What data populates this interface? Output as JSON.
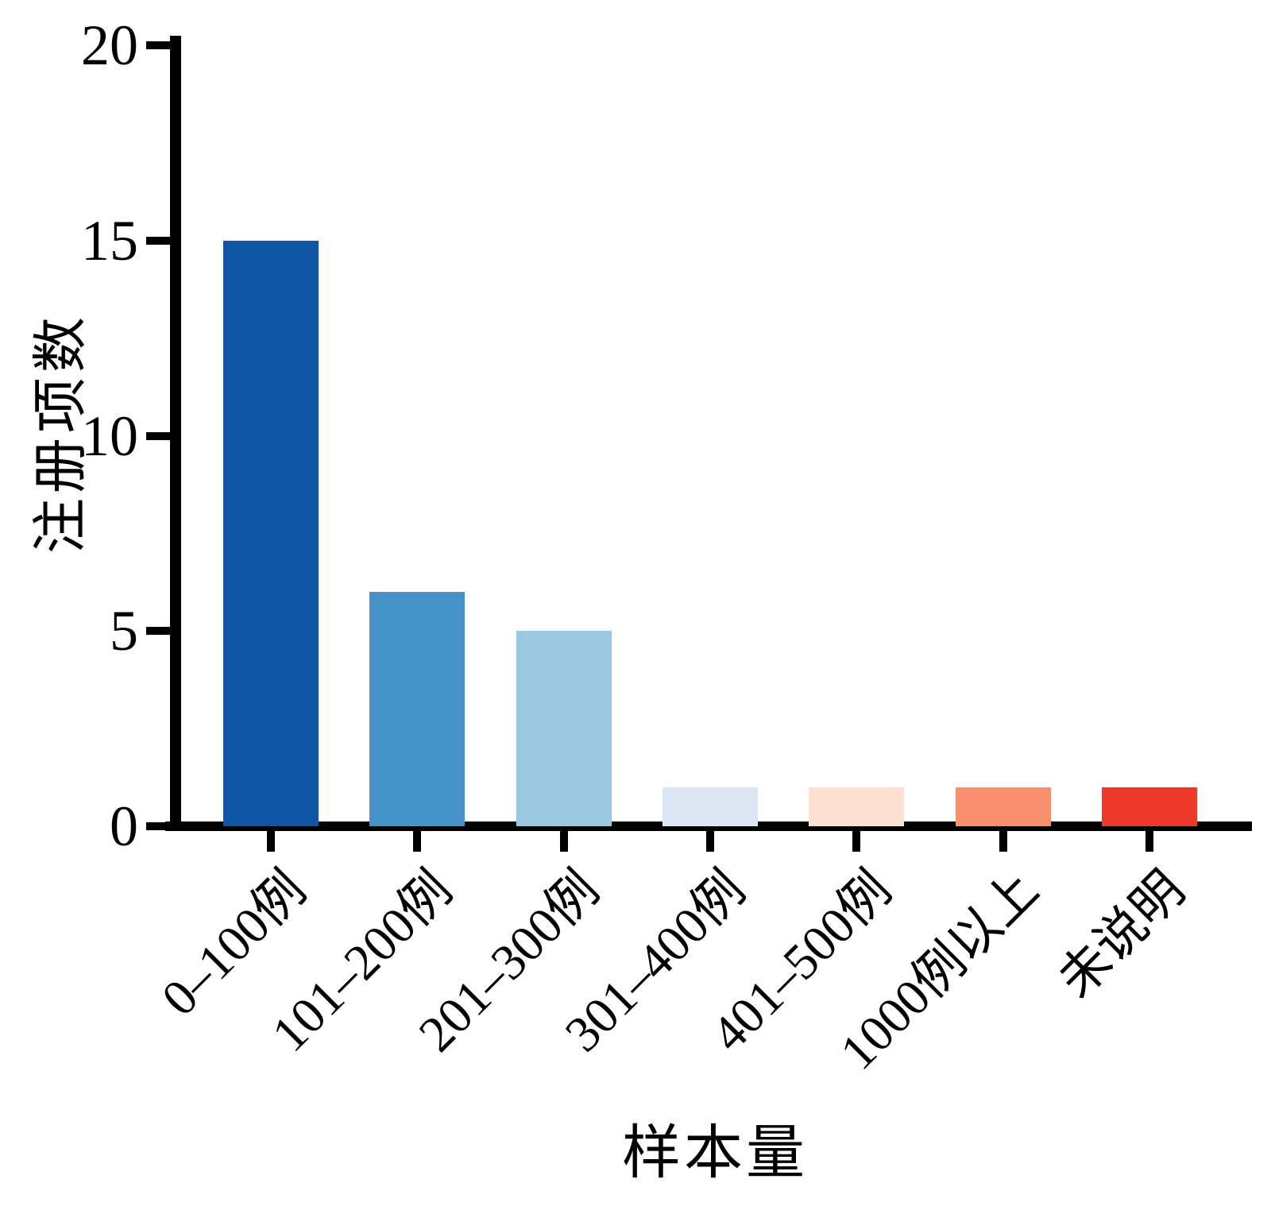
{
  "chart_data": {
    "type": "bar",
    "title": "",
    "categories": [
      "0–100例",
      "101–200例",
      "201–300例",
      "301–400例",
      "401–500例",
      "1000例以上",
      "未说明"
    ],
    "values": [
      15,
      6,
      5,
      1,
      1,
      1,
      1
    ],
    "bar_colors": [
      "#0F55A4",
      "#4492C8",
      "#9BC8E0",
      "#DCE7F3",
      "#FCE0D4",
      "#FA9070",
      "#EE3A2C"
    ],
    "xlabel": "样本量",
    "ylabel": "注册项数",
    "ylim": [
      0,
      20
    ],
    "yticks": [
      0,
      5,
      10,
      15,
      20
    ],
    "grid": false,
    "legend": "none",
    "axis_color": "#000000",
    "background_color": "#FFFFFF"
  }
}
